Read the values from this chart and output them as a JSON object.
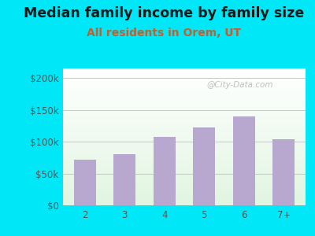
{
  "title": "Median family income by family size",
  "subtitle": "All residents in Orem, UT",
  "categories": [
    "2",
    "3",
    "4",
    "5",
    "6",
    "7+"
  ],
  "values": [
    72000,
    80000,
    107000,
    122000,
    140000,
    104000
  ],
  "bar_color": "#b8a8d0",
  "title_fontsize": 12.5,
  "subtitle_fontsize": 10,
  "subtitle_color": "#c06030",
  "title_color": "#1a1a1a",
  "yticks": [
    0,
    50000,
    100000,
    150000,
    200000
  ],
  "ytick_labels": [
    "$0",
    "$50k",
    "$100k",
    "$150k",
    "$200k"
  ],
  "ylim": [
    0,
    215000
  ],
  "outer_bg": "#00e8f8",
  "grid_color": "#c8c8c8",
  "watermark": "@City-Data.com",
  "watermark_color": "#aaaaaa",
  "tick_color": "#555555",
  "tick_fontsize": 8.5
}
